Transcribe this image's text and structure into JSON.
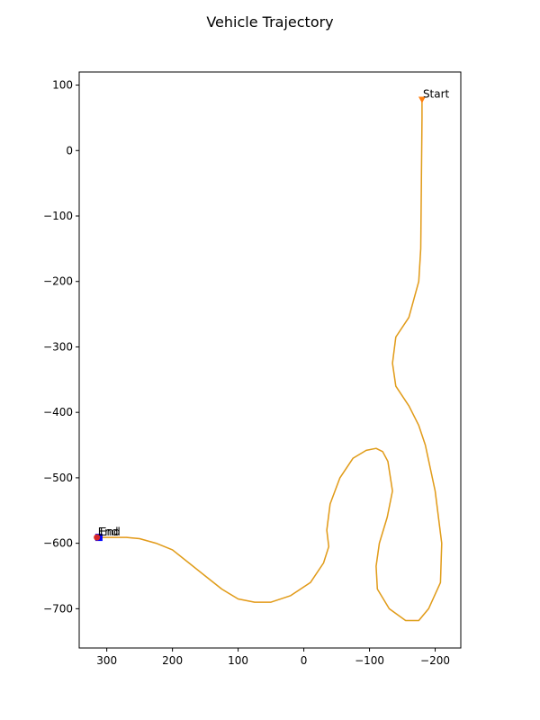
{
  "chart_data": {
    "type": "line",
    "title": "Vehicle Trajectory",
    "xlabel": "",
    "ylabel": "",
    "xlim": [
      342,
      -239
    ],
    "ylim": [
      -760,
      120
    ],
    "x_inverted": true,
    "grid": false,
    "legend": "none",
    "xticks": [
      300,
      200,
      100,
      0,
      -100,
      -200
    ],
    "yticks": [
      100,
      0,
      -100,
      -200,
      -300,
      -400,
      -500,
      -600,
      -700
    ],
    "series": [
      {
        "color": "#ff7f0e",
        "x": [
          -180,
          -180,
          -179,
          -178,
          -175,
          -160,
          -140,
          -135,
          -140,
          -160,
          -175,
          -185,
          -200,
          -210,
          -208,
          -190,
          -175,
          -155,
          -130,
          -112,
          -110,
          -115,
          -127,
          -135,
          -128,
          -120,
          -110,
          -95,
          -75,
          -55,
          -40,
          -35,
          -38,
          -30,
          -10,
          20,
          50,
          75,
          100,
          125,
          150,
          175,
          200,
          225,
          250,
          270,
          290,
          305,
          310
        ],
        "y": [
          78,
          50,
          -50,
          -150,
          -200,
          -255,
          -285,
          -325,
          -360,
          -390,
          -420,
          -450,
          -520,
          -600,
          -660,
          -700,
          -718,
          -718,
          -700,
          -670,
          -635,
          -600,
          -560,
          -520,
          -475,
          -460,
          -455,
          -458,
          -470,
          -500,
          -540,
          -580,
          -605,
          -630,
          -660,
          -680,
          -690,
          -690,
          -685,
          -670,
          -650,
          -630,
          -610,
          -600,
          -593,
          -591,
          -591,
          -591,
          -591
        ]
      },
      {
        "color": "#bcbd22",
        "x": [
          -180,
          -180,
          -179,
          -178,
          -175,
          -160,
          -140,
          -135,
          -140,
          -160,
          -175,
          -185,
          -200,
          -210,
          -208,
          -190,
          -175,
          -155,
          -130,
          -112,
          -110,
          -115,
          -127,
          -135,
          -128,
          -120,
          -110,
          -95,
          -75,
          -55,
          -40,
          -35,
          -38,
          -30,
          -10,
          20,
          50,
          75,
          100,
          125,
          150,
          175,
          200,
          225,
          250,
          270,
          290,
          305,
          310
        ],
        "y": [
          78,
          50,
          -50,
          -150,
          -200,
          -255,
          -285,
          -325,
          -360,
          -390,
          -420,
          -450,
          -520,
          -600,
          -660,
          -700,
          -718,
          -718,
          -700,
          -670,
          -635,
          -600,
          -560,
          -520,
          -475,
          -460,
          -455,
          -458,
          -470,
          -500,
          -540,
          -580,
          -605,
          -630,
          -660,
          -680,
          -690,
          -690,
          -685,
          -670,
          -650,
          -630,
          -610,
          -600,
          -593,
          -591,
          -591,
          -591,
          -591
        ]
      }
    ],
    "markers": [
      {
        "x": -180,
        "y": 78,
        "color": "#ff7f0e",
        "shape": "triangle-down"
      },
      {
        "x": 312,
        "y": -591,
        "color": "#0000ff",
        "shape": "square"
      },
      {
        "x": 315,
        "y": -591,
        "color": "#d62728",
        "shape": "circle"
      }
    ],
    "annotations": [
      {
        "text": "Start",
        "x": -180,
        "y": 78
      },
      {
        "text": "End",
        "x": 315,
        "y": -591
      },
      {
        "text": "End",
        "x": 312,
        "y": -591
      }
    ]
  }
}
